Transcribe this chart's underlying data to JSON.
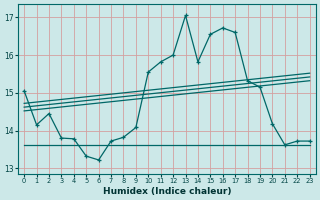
{
  "xlabel": "Humidex (Indice chaleur)",
  "bg_color": "#cce8e8",
  "grid_color": "#d4a0a0",
  "line_color": "#006868",
  "xlim": [
    -0.5,
    23.5
  ],
  "ylim": [
    12.85,
    17.35
  ],
  "yticks": [
    13,
    14,
    15,
    16,
    17
  ],
  "xticks": [
    0,
    1,
    2,
    3,
    4,
    5,
    6,
    7,
    8,
    9,
    10,
    11,
    12,
    13,
    14,
    15,
    16,
    17,
    18,
    19,
    20,
    21,
    22,
    23
  ],
  "main_x": [
    0,
    1,
    2,
    3,
    4,
    5,
    6,
    7,
    8,
    9,
    10,
    11,
    12,
    13,
    14,
    15,
    16,
    17,
    18,
    19,
    20,
    21,
    22,
    23
  ],
  "main_y": [
    15.05,
    14.15,
    14.45,
    13.8,
    13.78,
    13.32,
    13.22,
    13.72,
    13.82,
    14.08,
    15.55,
    15.82,
    16.0,
    17.05,
    15.82,
    16.55,
    16.72,
    16.6,
    15.32,
    15.15,
    14.18,
    13.62,
    13.72,
    13.72
  ],
  "trend1_x": [
    0,
    23
  ],
  "trend1_y": [
    14.72,
    15.52
  ],
  "trend2_x": [
    0,
    23
  ],
  "trend2_y": [
    14.62,
    15.42
  ],
  "trend3_x": [
    0,
    23
  ],
  "trend3_y": [
    14.52,
    15.32
  ],
  "flat_x": [
    0,
    10,
    11,
    12,
    13,
    14,
    15,
    16,
    17,
    18,
    19,
    20,
    21,
    22,
    23
  ],
  "flat_y": [
    13.62,
    13.62,
    13.62,
    13.62,
    13.62,
    13.62,
    13.62,
    13.62,
    13.62,
    13.62,
    13.62,
    13.62,
    13.62,
    13.62,
    13.62
  ]
}
